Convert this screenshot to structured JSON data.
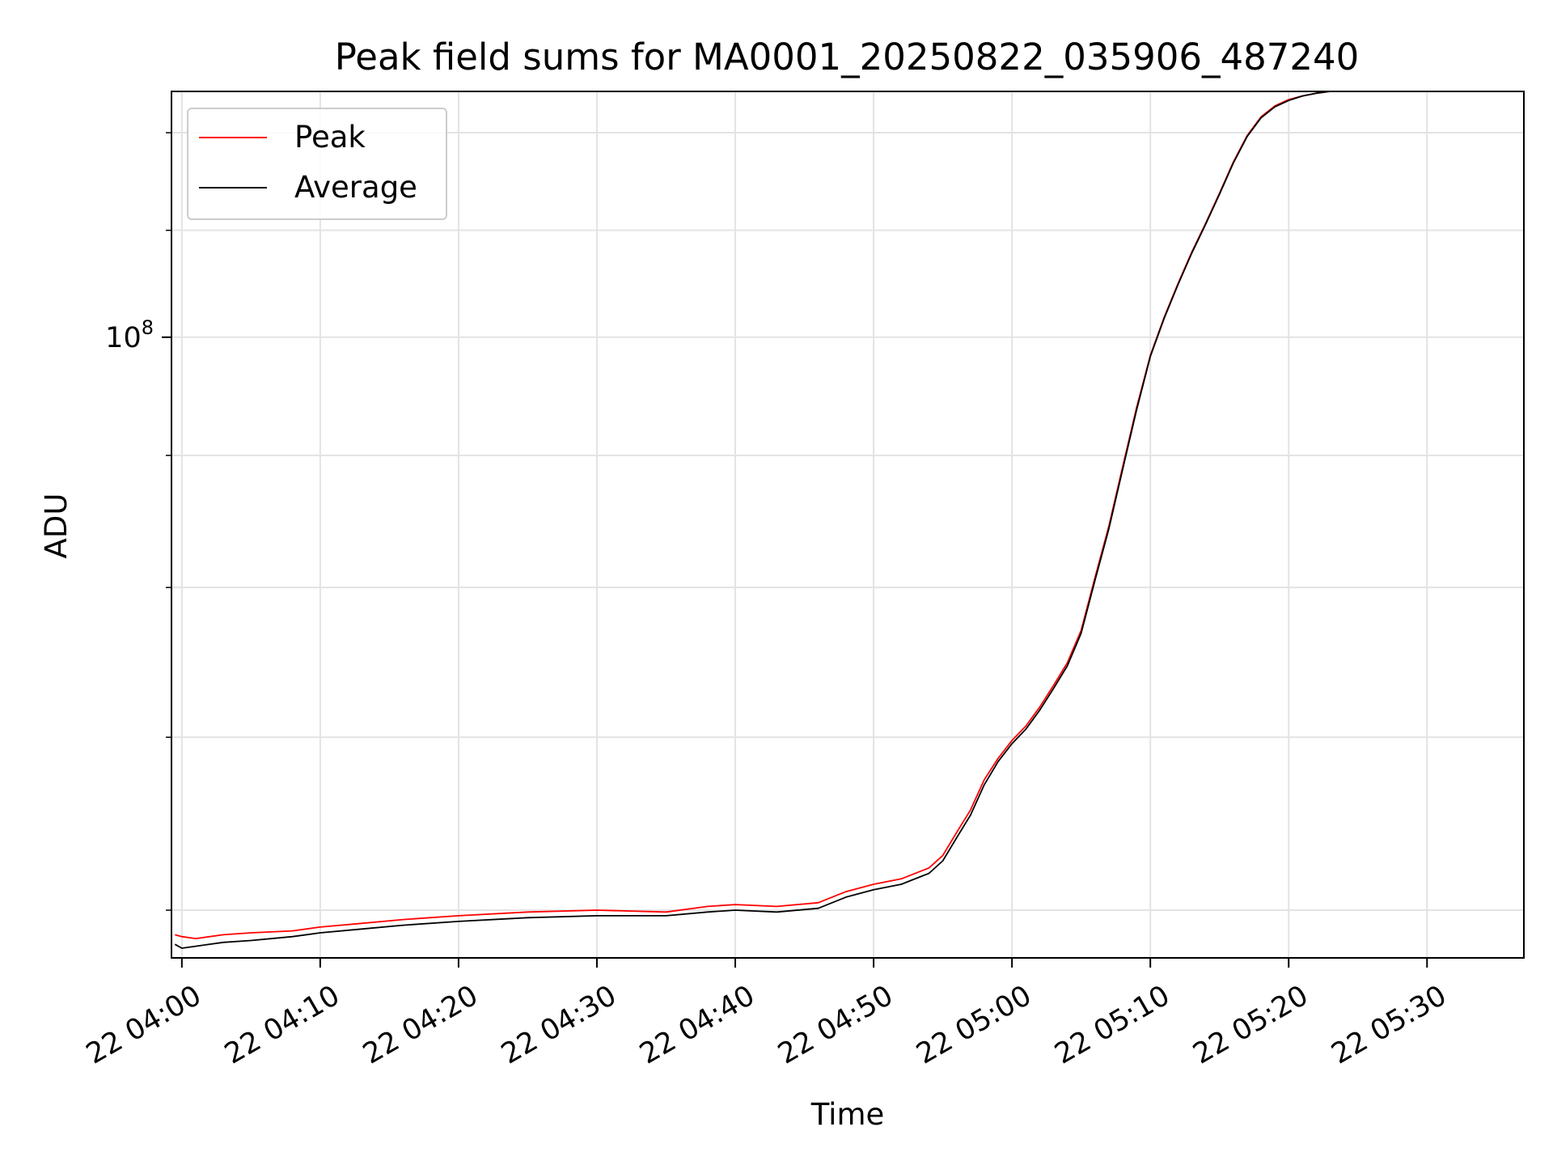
{
  "chart_data": {
    "type": "line",
    "title": "Peak field sums for MA0001_20250822_035906_487240",
    "xlabel": "Time",
    "ylabel": "ADU",
    "y_scale": "log",
    "xlim": [
      "2025-08-22 03:59:15",
      "2025-08-22 05:37:00"
    ],
    "ylim": [
      57500000,
      124500000
    ],
    "x_ticks": [
      {
        "time": "2025-08-22 04:00",
        "label": "22 04:00"
      },
      {
        "time": "2025-08-22 04:10",
        "label": "22 04:10"
      },
      {
        "time": "2025-08-22 04:20",
        "label": "22 04:20"
      },
      {
        "time": "2025-08-22 04:30",
        "label": "22 04:30"
      },
      {
        "time": "2025-08-22 04:40",
        "label": "22 04:40"
      },
      {
        "time": "2025-08-22 04:50",
        "label": "22 04:50"
      },
      {
        "time": "2025-08-22 05:00",
        "label": "22 05:00"
      },
      {
        "time": "2025-08-22 05:10",
        "label": "22 05:10"
      },
      {
        "time": "2025-08-22 05:20",
        "label": "22 05:20"
      },
      {
        "time": "2025-08-22 05:30",
        "label": "22 05:30"
      }
    ],
    "y_major_ticks": [
      {
        "value": 100000000,
        "label_base": "10",
        "label_exp": "8"
      }
    ],
    "y_minor_ticks": [
      60000000,
      70000000,
      80000000,
      90000000,
      110000000,
      120000000
    ],
    "grid": true,
    "legend_position": "upper-left",
    "series": [
      {
        "name": "Peak",
        "color": "#ff0000",
        "x": [
          "2025-08-22 03:59:30",
          "2025-08-22 04:00:00",
          "2025-08-22 04:01:00",
          "2025-08-22 04:03:00",
          "2025-08-22 04:05:00",
          "2025-08-22 04:08:00",
          "2025-08-22 04:10:00",
          "2025-08-22 04:13:00",
          "2025-08-22 04:16:00",
          "2025-08-22 04:20:00",
          "2025-08-22 04:25:00",
          "2025-08-22 04:30:00",
          "2025-08-22 04:35:00",
          "2025-08-22 04:38:00",
          "2025-08-22 04:40:00",
          "2025-08-22 04:43:00",
          "2025-08-22 04:46:00",
          "2025-08-22 04:48:00",
          "2025-08-22 04:50:00",
          "2025-08-22 04:52:00",
          "2025-08-22 04:54:00",
          "2025-08-22 04:55:00",
          "2025-08-22 04:56:00",
          "2025-08-22 04:57:00",
          "2025-08-22 04:58:00",
          "2025-08-22 04:59:00",
          "2025-08-22 05:00:00",
          "2025-08-22 05:01:00",
          "2025-08-22 05:02:00",
          "2025-08-22 05:03:00",
          "2025-08-22 05:04:00",
          "2025-08-22 05:05:00",
          "2025-08-22 05:06:00",
          "2025-08-22 05:07:00",
          "2025-08-22 05:08:00",
          "2025-08-22 05:09:00",
          "2025-08-22 05:10:00",
          "2025-08-22 05:11:00",
          "2025-08-22 05:12:00",
          "2025-08-22 05:13:00",
          "2025-08-22 05:14:00",
          "2025-08-22 05:15:00",
          "2025-08-22 05:16:00",
          "2025-08-22 05:17:00",
          "2025-08-22 05:18:00",
          "2025-08-22 05:19:00",
          "2025-08-22 05:20:00",
          "2025-08-22 05:21:00",
          "2025-08-22 05:22:00",
          "2025-08-22 05:23:00",
          "2025-08-22 05:23:30"
        ],
        "y": [
          58700000,
          58600000,
          58500000,
          58700000,
          58800000,
          58900000,
          59100000,
          59300000,
          59500000,
          59700000,
          59900000,
          60000000,
          59900000,
          60200000,
          60300000,
          60200000,
          60400000,
          61000000,
          61400000,
          61700000,
          62300000,
          63000000,
          64300000,
          65600000,
          67400000,
          68700000,
          69800000,
          70700000,
          71900000,
          73300000,
          74800000,
          77000000,
          80700000,
          84500000,
          89100000,
          93900000,
          98400000,
          101800000,
          104900000,
          107900000,
          110700000,
          113700000,
          116900000,
          119700000,
          121700000,
          122900000,
          123600000,
          124000000,
          124300000,
          124500000,
          124500000
        ]
      },
      {
        "name": "Average",
        "color": "#000000",
        "x": [
          "2025-08-22 03:59:30",
          "2025-08-22 04:00:00",
          "2025-08-22 04:01:00",
          "2025-08-22 04:03:00",
          "2025-08-22 04:05:00",
          "2025-08-22 04:08:00",
          "2025-08-22 04:10:00",
          "2025-08-22 04:13:00",
          "2025-08-22 04:16:00",
          "2025-08-22 04:20:00",
          "2025-08-22 04:25:00",
          "2025-08-22 04:30:00",
          "2025-08-22 04:35:00",
          "2025-08-22 04:38:00",
          "2025-08-22 04:40:00",
          "2025-08-22 04:43:00",
          "2025-08-22 04:46:00",
          "2025-08-22 04:48:00",
          "2025-08-22 04:50:00",
          "2025-08-22 04:52:00",
          "2025-08-22 04:54:00",
          "2025-08-22 04:55:00",
          "2025-08-22 04:56:00",
          "2025-08-22 04:57:00",
          "2025-08-22 04:58:00",
          "2025-08-22 04:59:00",
          "2025-08-22 05:00:00",
          "2025-08-22 05:01:00",
          "2025-08-22 05:02:00",
          "2025-08-22 05:03:00",
          "2025-08-22 05:04:00",
          "2025-08-22 05:05:00",
          "2025-08-22 05:06:00",
          "2025-08-22 05:07:00",
          "2025-08-22 05:08:00",
          "2025-08-22 05:09:00",
          "2025-08-22 05:10:00",
          "2025-08-22 05:11:00",
          "2025-08-22 05:12:00",
          "2025-08-22 05:13:00",
          "2025-08-22 05:14:00",
          "2025-08-22 05:15:00",
          "2025-08-22 05:16:00",
          "2025-08-22 05:17:00",
          "2025-08-22 05:18:00",
          "2025-08-22 05:19:00",
          "2025-08-22 05:20:00",
          "2025-08-22 05:21:00",
          "2025-08-22 05:22:00",
          "2025-08-22 05:23:00",
          "2025-08-22 05:23:30"
        ],
        "y": [
          58200000,
          58000000,
          58100000,
          58300000,
          58400000,
          58600000,
          58800000,
          59000000,
          59200000,
          59400000,
          59600000,
          59700000,
          59700000,
          59900000,
          60000000,
          59900000,
          60100000,
          60700000,
          61100000,
          61400000,
          62000000,
          62700000,
          64000000,
          65300000,
          67100000,
          68500000,
          69600000,
          70500000,
          71700000,
          73100000,
          74600000,
          76800000,
          80500000,
          84300000,
          88900000,
          93700000,
          98300000,
          101700000,
          104800000,
          107800000,
          110600000,
          113600000,
          116800000,
          119600000,
          121600000,
          122800000,
          123500000,
          124000000,
          124300000,
          124500000,
          124500000
        ]
      }
    ]
  }
}
